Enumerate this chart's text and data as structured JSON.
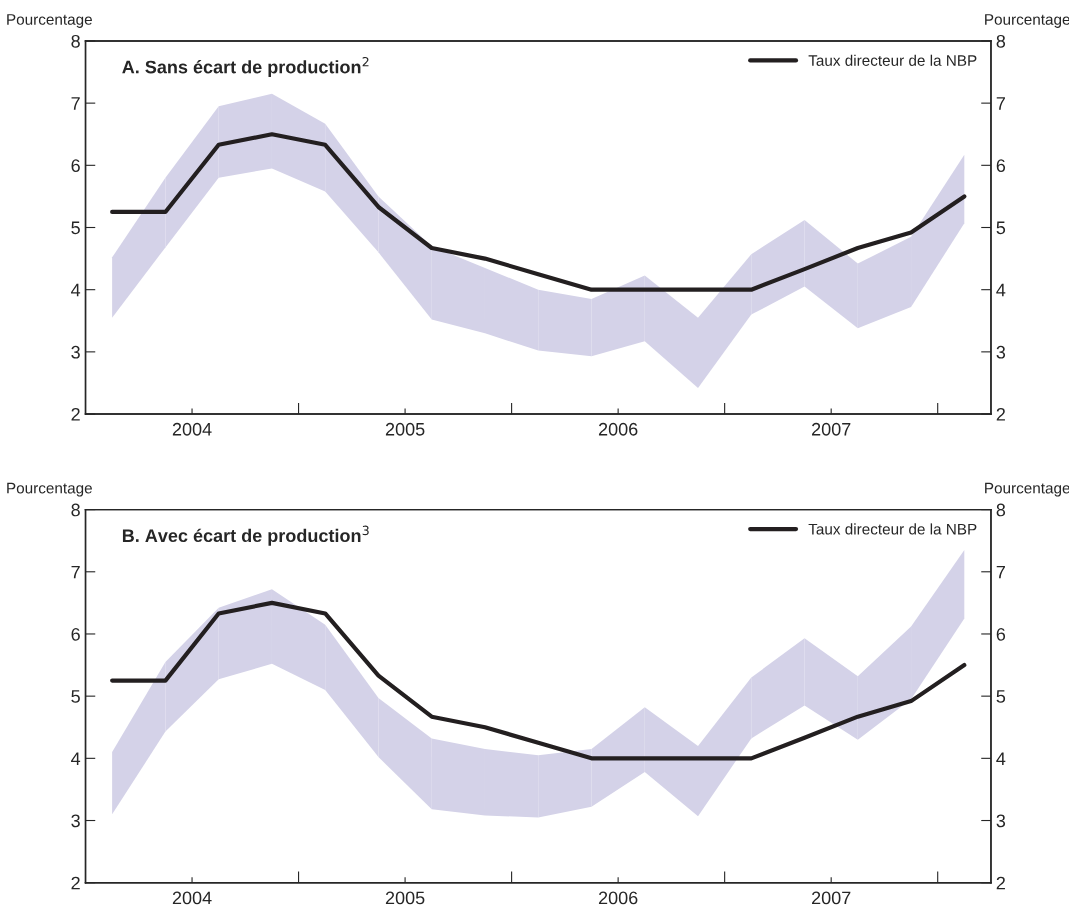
{
  "chart_data": [
    {
      "type": "line",
      "title": "A. Sans écart de production$^{2}$",
      "ylabel": "Pourcentage",
      "y2label": "Pourcentage",
      "x": [
        2004.125,
        2004.375,
        2004.625,
        2004.875,
        2005.125,
        2005.375,
        2005.625,
        2005.875,
        2006.125,
        2006.375,
        2006.625,
        2006.875,
        2007.125,
        2007.375,
        2007.625,
        2007.875,
        2008.125
      ],
      "series": [
        {
          "name": "Taux directeur de la NBP",
          "color": "#231f20",
          "colors": [
            "#d4d2e8",
            "#d4d2e8",
            "#d4d2e8",
            "#d4d2e8",
            "#d4d2e8",
            "#d4d2e8",
            "#d4d2e8",
            "#d4d2e8",
            "#d4d2e8",
            "#d4d2e8",
            "#d4d2e8",
            "#d4d2e8",
            "#d4d2e8",
            "#d4d2e8",
            "#d4d2e8",
            "#d4d2e8",
            "#d4d2e8"
          ],
          "values": [
            5.25,
            5.25,
            6.33,
            6.5,
            6.33,
            5.33,
            4.67,
            4.5,
            4.25,
            4.0,
            4.0,
            4.0,
            4.0,
            4.33,
            4.67,
            4.92,
            5.5
          ],
          "lower": [
            3.55,
            4.68,
            5.8,
            5.95,
            5.58,
            4.6,
            3.52,
            3.3,
            3.02,
            2.93,
            3.17,
            2.42,
            3.6,
            4.05,
            3.38,
            3.72,
            5.07
          ],
          "upper": [
            4.52,
            5.8,
            6.95,
            7.15,
            6.67,
            5.5,
            4.7,
            4.35,
            4.0,
            3.85,
            4.23,
            3.55,
            4.57,
            5.12,
            4.42,
            4.85,
            6.17
          ]
        }
      ],
      "xlim": [
        2004,
        2008.25
      ],
      "xticks": [
        {
          "value": 2004.5,
          "label": "2004"
        },
        {
          "value": 2005,
          "label": null
        },
        {
          "value": 2005.5,
          "label": "2005"
        },
        {
          "value": 2006,
          "label": null
        },
        {
          "value": 2006.5,
          "label": "2006"
        },
        {
          "value": 2007,
          "label": null
        },
        {
          "value": 2007.5,
          "label": "2007"
        },
        {
          "value": 2008,
          "label": null
        }
      ],
      "ylim": [
        2,
        8
      ],
      "yticks": [
        2,
        3,
        4,
        5,
        6,
        7,
        8
      ],
      "y2lim": [
        2,
        8
      ],
      "y2ticks": [
        2,
        3,
        4,
        5,
        6,
        7,
        8
      ],
      "grid": false,
      "legend": "top right"
    },
    {
      "type": "line",
      "title": "B. Avec écart de production$^{3}$",
      "ylabel": "Pourcentage",
      "y2label": "Pourcentage",
      "x": [
        2004.125,
        2004.375,
        2004.625,
        2004.875,
        2005.125,
        2005.375,
        2005.625,
        2005.875,
        2006.125,
        2006.375,
        2006.625,
        2006.875,
        2007.125,
        2007.375,
        2007.625,
        2007.875,
        2008.125
      ],
      "series": [
        {
          "name": "Taux directeur de la NBP",
          "color": "#231f20",
          "colors": [
            "#d4d2e8",
            "#d4d2e8",
            "#d4d2e8",
            "#d4d2e8",
            "#d4d2e8",
            "#d4d2e8",
            "#d4d2e8",
            "#d4d2e8",
            "#d4d2e8",
            "#d4d2e8",
            "#d4d2e8",
            "#d4d2e8",
            "#d4d2e8",
            "#d4d2e8",
            "#d4d2e8",
            "#d4d2e8",
            "#d4d2e8"
          ],
          "values": [
            5.25,
            5.25,
            6.33,
            6.5,
            6.33,
            5.33,
            4.67,
            4.5,
            4.25,
            4.0,
            4.0,
            4.0,
            4.0,
            4.33,
            4.67,
            4.92,
            5.5
          ],
          "lower": [
            3.1,
            4.43,
            5.27,
            5.52,
            5.1,
            4.02,
            3.18,
            3.08,
            3.05,
            3.22,
            3.78,
            3.07,
            4.32,
            4.85,
            4.3,
            4.95,
            6.25
          ],
          "upper": [
            4.1,
            5.55,
            6.42,
            6.72,
            6.15,
            4.97,
            4.32,
            4.15,
            4.05,
            4.15,
            4.82,
            4.2,
            5.3,
            5.93,
            5.32,
            6.12,
            7.35
          ]
        }
      ],
      "xlim": [
        2004,
        2008.25
      ],
      "xticks": [
        {
          "value": 2004.5,
          "label": "2004"
        },
        {
          "value": 2005,
          "label": null
        },
        {
          "value": 2005.5,
          "label": "2005"
        },
        {
          "value": 2006,
          "label": null
        },
        {
          "value": 2006.5,
          "label": "2006"
        },
        {
          "value": 2007,
          "label": null
        },
        {
          "value": 2007.5,
          "label": "2007"
        },
        {
          "value": 2008,
          "label": null
        }
      ],
      "ylim": [
        2,
        8
      ],
      "yticks": [
        2,
        3,
        4,
        5,
        6,
        7,
        8
      ],
      "y2lim": [
        2,
        8
      ],
      "y2ticks": [
        2,
        3,
        4,
        5,
        6,
        7,
        8
      ],
      "grid": false,
      "legend": "top right"
    }
  ]
}
